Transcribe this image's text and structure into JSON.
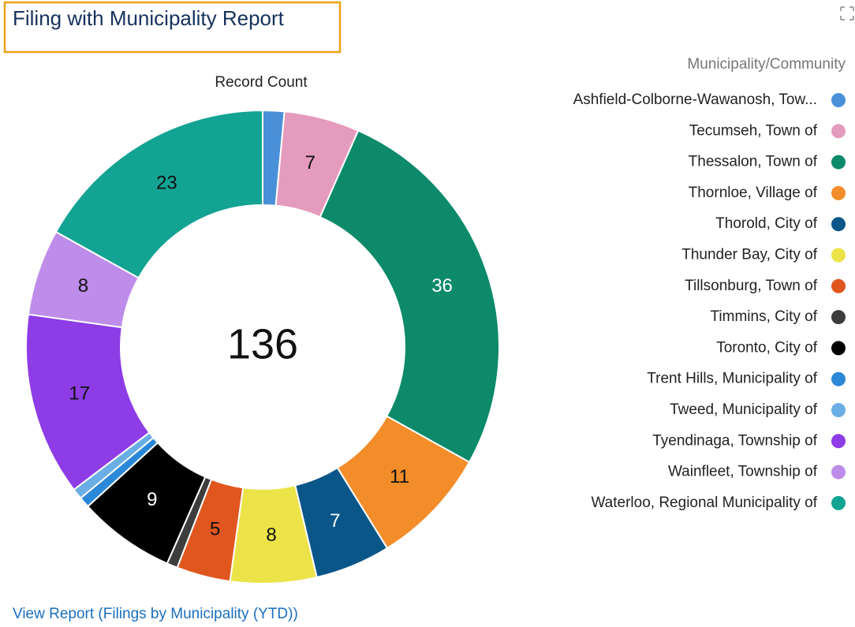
{
  "chart_data": {
    "type": "donut",
    "title": "Filing with Municipality Report",
    "subtitle": "Record Count",
    "legend_title": "Municipality/Community",
    "total": 136,
    "footer_link": "View Report (Filings by Municipality (YTD))",
    "categories": [
      "Ashfield-Colborne-Wawanosh, Tow...",
      "Tecumseh, Town of",
      "Thessalon, Town of",
      "Thornloe, Village of",
      "Thorold, City of",
      "Thunder Bay, City of",
      "Tillsonburg, Town of",
      "Timmins, City of",
      "Toronto, City of",
      "Trent Hills, Municipality of",
      "Tweed, Municipality of",
      "Tyendinaga, Township of",
      "Wainfleet, Township of",
      "Waterloo, Regional Municipality of"
    ],
    "values": [
      2,
      7,
      36,
      11,
      7,
      8,
      5,
      1,
      9,
      1,
      1,
      17,
      8,
      23
    ],
    "colors": [
      "#4a90d9",
      "#e49bbd",
      "#0c8a6a",
      "#f28d2a",
      "#0a5688",
      "#ece349",
      "#e0561f",
      "#3d3d3d",
      "#000000",
      "#2b88d8",
      "#6aaee6",
      "#8d3ce6",
      "#be8ce9",
      "#13a393"
    ],
    "legend": "right"
  }
}
